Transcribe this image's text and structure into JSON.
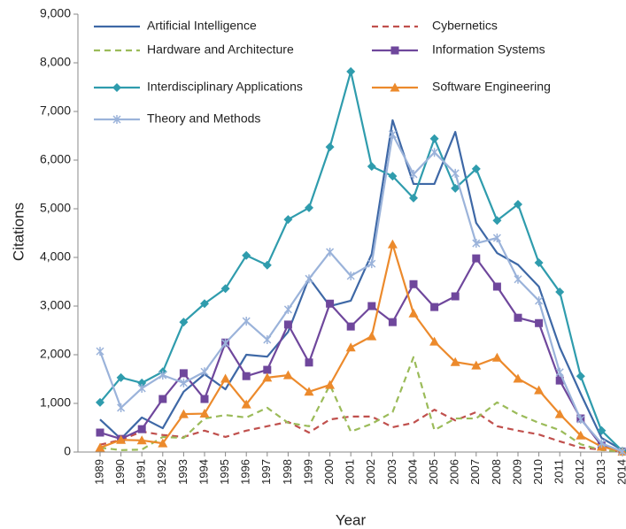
{
  "chart_data": {
    "type": "line",
    "x_label": "Year",
    "y_label": "Citations",
    "categories": [
      "1989",
      "1990",
      "1991",
      "1992",
      "1993",
      "1994",
      "1995",
      "1996",
      "1997",
      "1998",
      "1999",
      "2000",
      "2001",
      "2002",
      "2003",
      "2004",
      "2005",
      "2006",
      "2007",
      "2008",
      "2009",
      "2010",
      "2011",
      "2012",
      "2013",
      "2014"
    ],
    "ylim": [
      0,
      9000
    ],
    "yticks": [
      0,
      {
        "value": 1000,
        "label": "1,000"
      },
      {
        "value": 2000,
        "label": "2,000"
      },
      {
        "value": 3000,
        "label": "3,000"
      },
      {
        "value": 4000,
        "label": "4,000"
      },
      {
        "value": 5000,
        "label": "5,000"
      },
      {
        "value": 6000,
        "label": "6,000"
      },
      {
        "value": 7000,
        "label": "7,000"
      },
      {
        "value": 8000,
        "label": "8,000"
      },
      {
        "value": 9000,
        "label": "9,000"
      }
    ],
    "grid": false,
    "legend": "top",
    "series": [
      {
        "name": "Artificial Intelligence",
        "color": "#3e68a6",
        "dashed": false,
        "marker": "none",
        "values": [
          670,
          270,
          710,
          490,
          1240,
          1600,
          1290,
          2000,
          1960,
          2470,
          3580,
          3000,
          3110,
          4070,
          6820,
          5510,
          5510,
          6580,
          4710,
          4090,
          3850,
          3400,
          2150,
          1200,
          290,
          40
        ]
      },
      {
        "name": "Cybernetics",
        "color": "#c0504d",
        "dashed": true,
        "marker": "none",
        "values": [
          150,
          250,
          420,
          350,
          310,
          440,
          310,
          440,
          530,
          620,
          400,
          670,
          730,
          730,
          510,
          600,
          870,
          650,
          820,
          530,
          440,
          360,
          220,
          90,
          50,
          10
        ]
      },
      {
        "name": "Hardware and Architecture",
        "color": "#9bbb59",
        "dashed": true,
        "marker": "none",
        "values": [
          90,
          40,
          50,
          310,
          290,
          690,
          760,
          710,
          910,
          600,
          530,
          1380,
          420,
          580,
          820,
          1950,
          450,
          690,
          690,
          1020,
          780,
          600,
          450,
          160,
          40,
          10
        ]
      },
      {
        "name": "Information Systems",
        "color": "#6f479c",
        "dashed": false,
        "marker": "square",
        "values": [
          400,
          270,
          470,
          1090,
          1620,
          1090,
          2250,
          1560,
          1690,
          2620,
          1840,
          3050,
          2580,
          3000,
          2670,
          3450,
          2980,
          3200,
          3980,
          3400,
          2760,
          2650,
          1470,
          690,
          130,
          10
        ]
      },
      {
        "name": "Interdisciplinary Applications",
        "color": "#2f9cad",
        "dashed": false,
        "marker": "diamond",
        "values": [
          1020,
          1530,
          1420,
          1650,
          2670,
          3050,
          3360,
          4040,
          3840,
          4780,
          5020,
          6270,
          7820,
          5870,
          5670,
          5220,
          6440,
          5420,
          5820,
          4760,
          5090,
          3890,
          3290,
          1560,
          440,
          20
        ]
      },
      {
        "name": "Software Engineering",
        "color": "#ec8a2c",
        "dashed": false,
        "marker": "triangle",
        "values": [
          90,
          250,
          240,
          180,
          780,
          790,
          1510,
          980,
          1530,
          1580,
          1240,
          1380,
          2150,
          2380,
          4270,
          2850,
          2270,
          1850,
          1780,
          1940,
          1510,
          1270,
          780,
          340,
          110,
          10
        ]
      },
      {
        "name": "Theory and Methods",
        "color": "#9bb3da",
        "dashed": false,
        "marker": "star",
        "values": [
          2070,
          910,
          1310,
          1580,
          1420,
          1650,
          2240,
          2690,
          2310,
          2930,
          3560,
          4110,
          3620,
          3870,
          6530,
          5710,
          6160,
          5730,
          4290,
          4400,
          3550,
          3110,
          1640,
          670,
          180,
          10
        ]
      }
    ]
  }
}
